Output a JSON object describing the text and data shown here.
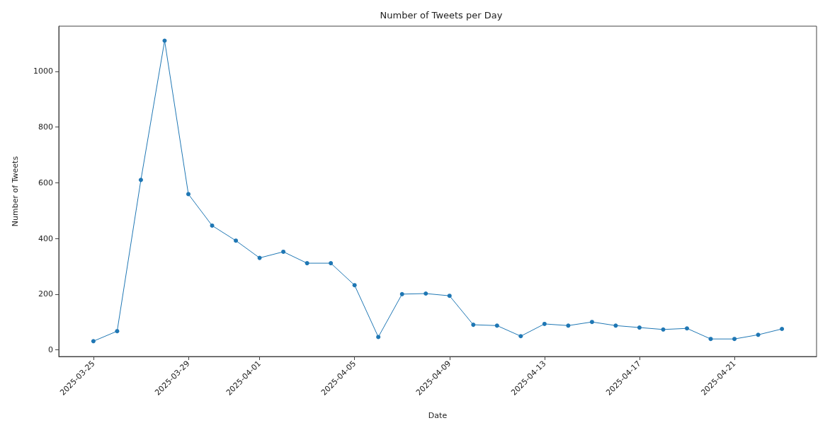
{
  "chart_data": {
    "type": "line",
    "title": "Number of Tweets per Day",
    "xlabel": "Date",
    "ylabel": "Number of Tweets",
    "x": [
      "2025-03-25",
      "2025-03-26",
      "2025-03-27",
      "2025-03-28",
      "2025-03-29",
      "2025-03-30",
      "2025-03-31",
      "2025-04-01",
      "2025-04-02",
      "2025-04-03",
      "2025-04-04",
      "2025-04-05",
      "2025-04-06",
      "2025-04-07",
      "2025-04-08",
      "2025-04-09",
      "2025-04-10",
      "2025-04-11",
      "2025-04-12",
      "2025-04-13",
      "2025-04-14",
      "2025-04-15",
      "2025-04-16",
      "2025-04-17",
      "2025-04-18",
      "2025-04-19",
      "2025-04-20",
      "2025-04-21",
      "2025-04-22",
      "2025-04-23"
    ],
    "series": [
      {
        "color": "#1f77b4",
        "values": [
          31,
          67,
          610,
          1110,
          559,
          446,
          392,
          330,
          352,
          311,
          311,
          232,
          46,
          200,
          202,
          194,
          90,
          87,
          49,
          93,
          87,
          100,
          87,
          80,
          73,
          77,
          39,
          39,
          54,
          75
        ]
      }
    ],
    "xlim": [
      "2025-03-23T13:00",
      "2025-04-24T11:00"
    ],
    "xticks": [
      "2025-03-25",
      "2025-03-29",
      "2025-04-01",
      "2025-04-05",
      "2025-04-09",
      "2025-04-13",
      "2025-04-17",
      "2025-04-21"
    ],
    "ylim": [
      -24,
      1162
    ],
    "yticks": [
      0,
      200,
      400,
      600,
      800,
      1000
    ],
    "grid": false,
    "marker": "circle",
    "line_style": "solid"
  }
}
